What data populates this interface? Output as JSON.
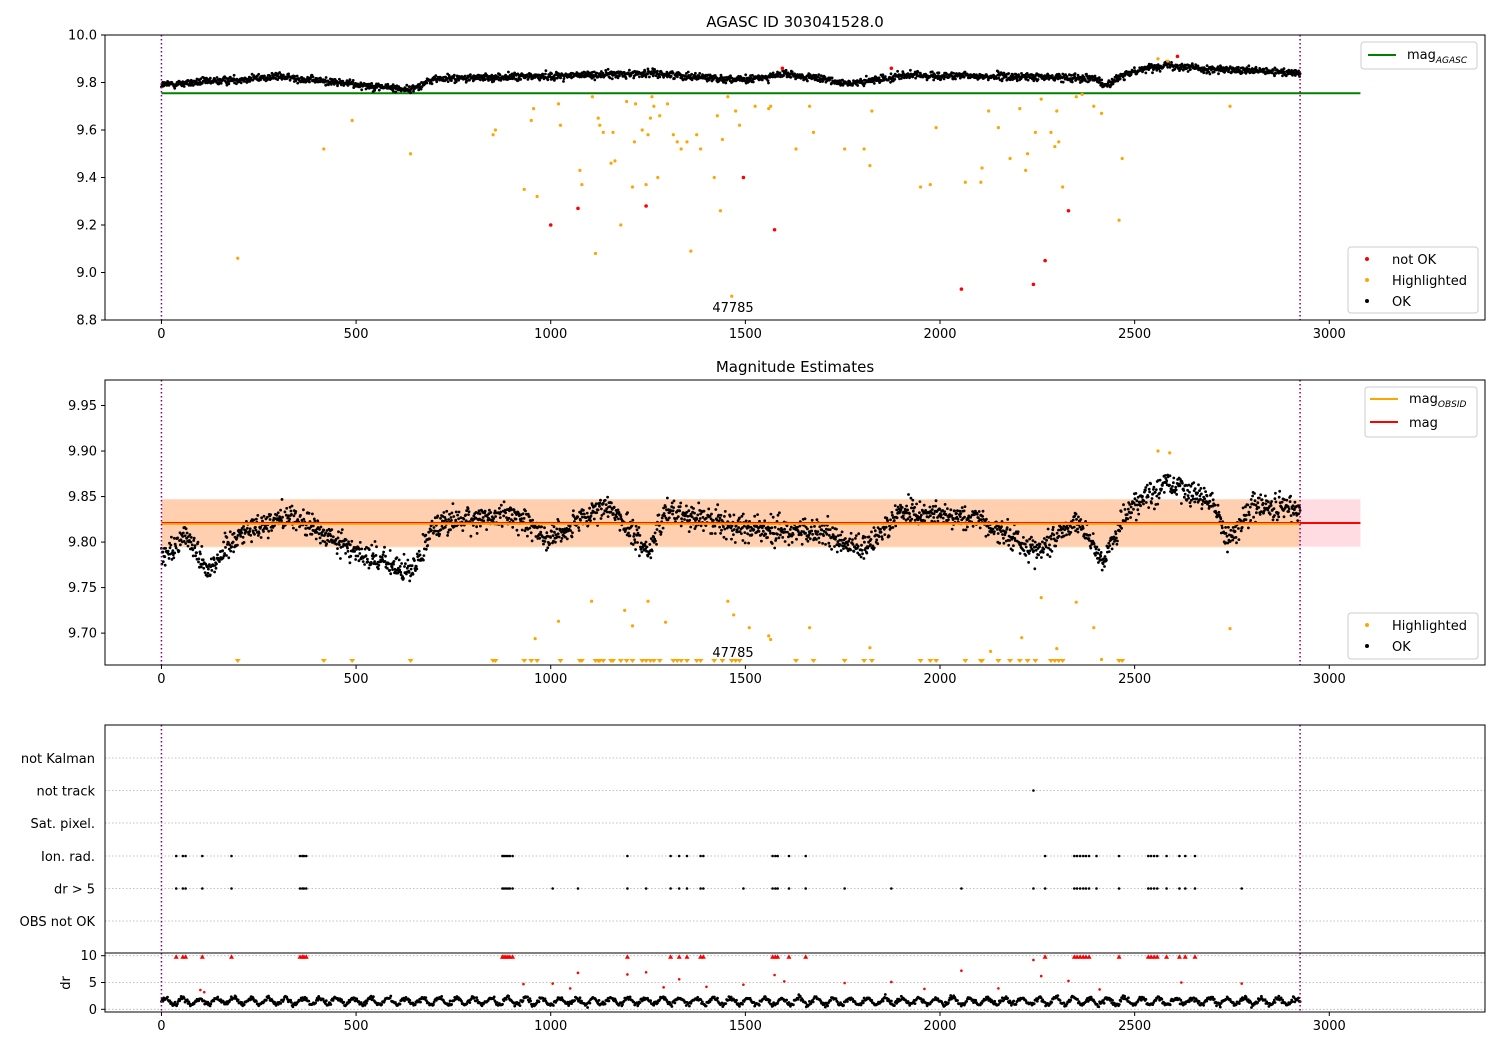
{
  "chart_data": [
    {
      "type": "scatter",
      "title": "AGASC ID 303041528.0",
      "xlim": [
        -145,
        3400
      ],
      "ylim": [
        8.8,
        10.0
      ],
      "x_ticks": [
        0,
        500,
        1000,
        1500,
        2000,
        2500,
        3000
      ],
      "y_ticks": [
        8.8,
        9.0,
        9.2,
        9.4,
        9.6,
        9.8,
        10.0
      ],
      "annotation": "47785",
      "obs_start": 0,
      "obs_end": 2925,
      "mag_agasc": 9.755,
      "legend_top": {
        "label": "mag",
        "sub": "AGASC",
        "color": "#008000"
      },
      "legend_bottom": [
        {
          "label": "not OK",
          "color": "#ff0000"
        },
        {
          "label": "Highlighted",
          "color": "#ffa500"
        },
        {
          "label": "OK",
          "color": "#000000"
        }
      ],
      "ok_band": {
        "x_range": [
          0,
          2925
        ],
        "n": 2400,
        "center": 9.815,
        "spread": 0.025,
        "drift": [
          [
            0,
            9.79
          ],
          [
            300,
            9.825
          ],
          [
            640,
            9.77
          ],
          [
            700,
            9.815
          ],
          [
            1180,
            9.835
          ],
          [
            1250,
            9.84
          ],
          [
            1500,
            9.81
          ],
          [
            1600,
            9.835
          ],
          [
            1780,
            9.795
          ],
          [
            1900,
            9.83
          ],
          [
            2400,
            9.82
          ],
          [
            2420,
            9.785
          ],
          [
            2500,
            9.85
          ],
          [
            2580,
            9.875
          ],
          [
            2700,
            9.855
          ],
          [
            2925,
            9.84
          ]
        ]
      },
      "highlighted": [
        [
          196,
          9.06
        ],
        [
          417,
          9.52
        ],
        [
          490,
          9.64
        ],
        [
          640,
          9.5
        ],
        [
          852,
          9.58
        ],
        [
          858,
          9.6
        ],
        [
          932,
          9.35
        ],
        [
          950,
          9.64
        ],
        [
          956,
          9.69
        ],
        [
          965,
          9.32
        ],
        [
          1020,
          9.71
        ],
        [
          1025,
          9.62
        ],
        [
          1075,
          9.43
        ],
        [
          1080,
          9.37
        ],
        [
          1107,
          9.74
        ],
        [
          1115,
          9.08
        ],
        [
          1122,
          9.65
        ],
        [
          1126,
          9.62
        ],
        [
          1135,
          9.59
        ],
        [
          1155,
          9.46
        ],
        [
          1160,
          9.59
        ],
        [
          1165,
          9.47
        ],
        [
          1180,
          9.2
        ],
        [
          1195,
          9.72
        ],
        [
          1210,
          9.36
        ],
        [
          1215,
          9.55
        ],
        [
          1218,
          9.71
        ],
        [
          1235,
          9.6
        ],
        [
          1245,
          9.37
        ],
        [
          1250,
          9.58
        ],
        [
          1256,
          9.65
        ],
        [
          1260,
          9.74
        ],
        [
          1265,
          9.7
        ],
        [
          1275,
          9.4
        ],
        [
          1280,
          9.66
        ],
        [
          1300,
          9.71
        ],
        [
          1315,
          9.58
        ],
        [
          1325,
          9.55
        ],
        [
          1335,
          9.52
        ],
        [
          1350,
          9.55
        ],
        [
          1360,
          9.09
        ],
        [
          1375,
          9.58
        ],
        [
          1385,
          9.52
        ],
        [
          1420,
          9.4
        ],
        [
          1428,
          9.66
        ],
        [
          1436,
          9.26
        ],
        [
          1441,
          9.56
        ],
        [
          1455,
          9.74
        ],
        [
          1465,
          8.9
        ],
        [
          1475,
          9.68
        ],
        [
          1485,
          9.62
        ],
        [
          1525,
          9.7
        ],
        [
          1560,
          9.69
        ],
        [
          1565,
          9.7
        ],
        [
          1630,
          9.52
        ],
        [
          1665,
          9.7
        ],
        [
          1675,
          9.59
        ],
        [
          1755,
          9.52
        ],
        [
          1805,
          9.52
        ],
        [
          1820,
          9.45
        ],
        [
          1825,
          9.68
        ],
        [
          1950,
          9.36
        ],
        [
          1975,
          9.37
        ],
        [
          1990,
          9.61
        ],
        [
          2065,
          9.38
        ],
        [
          2105,
          9.38
        ],
        [
          2108,
          9.44
        ],
        [
          2125,
          9.68
        ],
        [
          2150,
          9.61
        ],
        [
          2180,
          9.48
        ],
        [
          2205,
          9.69
        ],
        [
          2220,
          9.43
        ],
        [
          2225,
          9.5
        ],
        [
          2245,
          9.59
        ],
        [
          2260,
          9.73
        ],
        [
          2285,
          9.59
        ],
        [
          2295,
          9.53
        ],
        [
          2300,
          9.68
        ],
        [
          2305,
          9.55
        ],
        [
          2315,
          9.36
        ],
        [
          2350,
          9.74
        ],
        [
          2365,
          9.75
        ],
        [
          2395,
          9.7
        ],
        [
          2415,
          9.67
        ],
        [
          2460,
          9.22
        ],
        [
          2468,
          9.48
        ],
        [
          2745,
          9.7
        ],
        [
          2560,
          9.9
        ],
        [
          2585,
          9.89
        ]
      ],
      "not_ok": [
        [
          1000,
          9.2
        ],
        [
          1070,
          9.27
        ],
        [
          1245,
          9.28
        ],
        [
          1495,
          9.4
        ],
        [
          1575,
          9.18
        ],
        [
          1595,
          9.86
        ],
        [
          1875,
          9.86
        ],
        [
          2055,
          8.93
        ],
        [
          2240,
          8.95
        ],
        [
          2270,
          9.05
        ],
        [
          2330,
          9.26
        ],
        [
          2610,
          9.91
        ]
      ]
    },
    {
      "type": "scatter",
      "title": "Magnitude Estimates",
      "xlim": [
        -145,
        3400
      ],
      "ylim": [
        9.665,
        9.978
      ],
      "x_ticks": [
        0,
        500,
        1000,
        1500,
        2000,
        2500,
        3000
      ],
      "y_ticks": [
        9.7,
        9.75,
        9.8,
        9.85,
        9.9,
        9.95
      ],
      "y_tick_labels": [
        "9.70",
        "9.75",
        "9.80",
        "9.85",
        "9.90",
        "9.95"
      ],
      "annotation": "47785",
      "obs_start": 0,
      "obs_end": 2925,
      "mag": 9.821,
      "mag_band": [
        9.795,
        9.847
      ],
      "mag_obsid": 9.82,
      "mag_obsid_band": [
        9.794,
        9.847
      ],
      "legend_top": [
        {
          "label": "mag",
          "sub": "OBSID",
          "color": "#ffa500"
        },
        {
          "label": "mag",
          "sub": "",
          "color": "#ff0000"
        }
      ],
      "legend_bottom": [
        {
          "label": "Highlighted",
          "color": "#ffa500"
        },
        {
          "label": "OK",
          "color": "#000000"
        }
      ],
      "ok_band": {
        "x_range": [
          0,
          2925
        ],
        "n": 2400,
        "spread": 0.018,
        "drift": [
          [
            0,
            9.78
          ],
          [
            60,
            9.81
          ],
          [
            120,
            9.77
          ],
          [
            200,
            9.81
          ],
          [
            330,
            9.83
          ],
          [
            450,
            9.8
          ],
          [
            640,
            9.765
          ],
          [
            700,
            9.82
          ],
          [
            900,
            9.83
          ],
          [
            1000,
            9.805
          ],
          [
            1150,
            9.84
          ],
          [
            1250,
            9.79
          ],
          [
            1300,
            9.835
          ],
          [
            1500,
            9.815
          ],
          [
            1700,
            9.81
          ],
          [
            1800,
            9.79
          ],
          [
            1900,
            9.835
          ],
          [
            2100,
            9.825
          ],
          [
            2250,
            9.79
          ],
          [
            2350,
            9.825
          ],
          [
            2420,
            9.78
          ],
          [
            2480,
            9.835
          ],
          [
            2580,
            9.865
          ],
          [
            2700,
            9.845
          ],
          [
            2740,
            9.8
          ],
          [
            2800,
            9.84
          ],
          [
            2925,
            9.835
          ]
        ]
      },
      "highlighted": [
        [
          960,
          9.694
        ],
        [
          1020,
          9.713
        ],
        [
          1105,
          9.735
        ],
        [
          1190,
          9.725
        ],
        [
          1210,
          9.708
        ],
        [
          1250,
          9.735
        ],
        [
          1295,
          9.712
        ],
        [
          1455,
          9.735
        ],
        [
          1470,
          9.72
        ],
        [
          1510,
          9.706
        ],
        [
          1560,
          9.697
        ],
        [
          1565,
          9.693
        ],
        [
          1665,
          9.706
        ],
        [
          1820,
          9.684
        ],
        [
          2130,
          9.68
        ],
        [
          2210,
          9.695
        ],
        [
          2260,
          9.739
        ],
        [
          2300,
          9.683
        ],
        [
          2350,
          9.734
        ],
        [
          2395,
          9.706
        ],
        [
          2415,
          9.671
        ],
        [
          2745,
          9.705
        ],
        [
          2560,
          9.9
        ],
        [
          2590,
          9.898
        ]
      ],
      "below_markers": [
        196,
        417,
        490,
        640,
        852,
        858,
        932,
        950,
        965,
        1025,
        1075,
        1080,
        1115,
        1122,
        1126,
        1135,
        1155,
        1160,
        1180,
        1195,
        1210,
        1235,
        1245,
        1256,
        1265,
        1280,
        1315,
        1325,
        1335,
        1350,
        1375,
        1385,
        1420,
        1441,
        1465,
        1475,
        1485,
        1630,
        1675,
        1755,
        1805,
        1825,
        1950,
        1975,
        1990,
        2065,
        2105,
        2108,
        2150,
        2180,
        2205,
        2225,
        2245,
        2285,
        2295,
        2305,
        2315,
        2460,
        2468
      ]
    },
    {
      "type": "scatter",
      "xlim": [
        -145,
        3400
      ],
      "obs_start": 0,
      "obs_end": 2925,
      "flag_categories": [
        "not Kalman",
        "not track",
        "Sat. pixel.",
        "Ion. rad.",
        "dr > 5",
        "OBS not OK"
      ],
      "flag_points": {
        "not track": [
          2240
        ],
        "Ion. rad.": [
          38,
          55,
          62,
          105,
          180,
          356,
          362,
          366,
          372,
          876,
          880,
          885,
          890,
          895,
          902,
          1197,
          1308,
          1330,
          1350,
          1385,
          1392,
          1570,
          1577,
          1583,
          1612,
          1655,
          2270,
          2345,
          2352,
          2360,
          2368,
          2375,
          2383,
          2402,
          2460,
          2535,
          2542,
          2550,
          2558,
          2582,
          2615,
          2630,
          2655
        ],
        "dr > 5": [
          38,
          55,
          62,
          105,
          180,
          356,
          362,
          366,
          372,
          876,
          880,
          885,
          890,
          895,
          902,
          1005,
          1070,
          1197,
          1245,
          1308,
          1330,
          1350,
          1385,
          1392,
          1495,
          1570,
          1577,
          1583,
          1612,
          1655,
          1755,
          1875,
          2055,
          2240,
          2270,
          2345,
          2352,
          2360,
          2368,
          2375,
          2383,
          2402,
          2460,
          2535,
          2542,
          2550,
          2558,
          2582,
          2615,
          2630,
          2655,
          2775
        ]
      },
      "dr": {
        "ylabel": "dr",
        "ylim": [
          -0.5,
          10.5
        ],
        "y_ticks": [
          0,
          5,
          10
        ],
        "ok_band": {
          "x_range": [
            0,
            2925
          ],
          "n": 1500,
          "mean": 1.5,
          "spread": 0.9
        },
        "red_points": [
          [
            38,
            9.8
          ],
          [
            55,
            9.8
          ],
          [
            62,
            9.8
          ],
          [
            105,
            9.8
          ],
          [
            180,
            9.8
          ],
          [
            356,
            9.8
          ],
          [
            362,
            9.8
          ],
          [
            366,
            9.8
          ],
          [
            372,
            9.8
          ],
          [
            876,
            9.8
          ],
          [
            880,
            9.8
          ],
          [
            885,
            9.8
          ],
          [
            890,
            9.8
          ],
          [
            895,
            9.8
          ],
          [
            902,
            9.8
          ],
          [
            1197,
            9.8
          ],
          [
            1308,
            9.8
          ],
          [
            1330,
            9.8
          ],
          [
            1350,
            9.8
          ],
          [
            1385,
            9.8
          ],
          [
            1392,
            9.8
          ],
          [
            1570,
            9.8
          ],
          [
            1577,
            9.8
          ],
          [
            1583,
            9.8
          ],
          [
            1612,
            9.8
          ],
          [
            1655,
            9.8
          ],
          [
            2240,
            9.2
          ],
          [
            2270,
            9.8
          ],
          [
            2345,
            9.8
          ],
          [
            2352,
            9.8
          ],
          [
            2360,
            9.8
          ],
          [
            2368,
            9.8
          ],
          [
            2375,
            9.8
          ],
          [
            2383,
            9.8
          ],
          [
            2460,
            9.8
          ],
          [
            2535,
            9.8
          ],
          [
            2542,
            9.8
          ],
          [
            2550,
            9.8
          ],
          [
            2558,
            9.8
          ],
          [
            2582,
            9.8
          ],
          [
            2615,
            9.8
          ],
          [
            2630,
            9.8
          ],
          [
            2655,
            9.8
          ],
          [
            1070,
            6.8
          ],
          [
            1197,
            6.5
          ],
          [
            1245,
            6.9
          ],
          [
            1575,
            6.4
          ],
          [
            2055,
            7.2
          ],
          [
            2260,
            6.2
          ],
          [
            1330,
            5.6
          ],
          [
            1600,
            5.2
          ],
          [
            1875,
            5.1
          ],
          [
            2330,
            5.3
          ],
          [
            2620,
            5.0
          ],
          [
            2775,
            4.8
          ],
          [
            1005,
            4.8
          ],
          [
            1495,
            4.6
          ],
          [
            1755,
            4.9
          ],
          [
            930,
            4.7
          ],
          [
            100,
            3.6
          ],
          [
            110,
            3.2
          ],
          [
            1400,
            4.2
          ],
          [
            1050,
            3.9
          ],
          [
            1290,
            4.1
          ],
          [
            1960,
            3.8
          ],
          [
            2150,
            3.9
          ],
          [
            2410,
            3.7
          ]
        ]
      },
      "x_ticks": [
        0,
        500,
        1000,
        1500,
        2000,
        2500,
        3000
      ]
    }
  ]
}
